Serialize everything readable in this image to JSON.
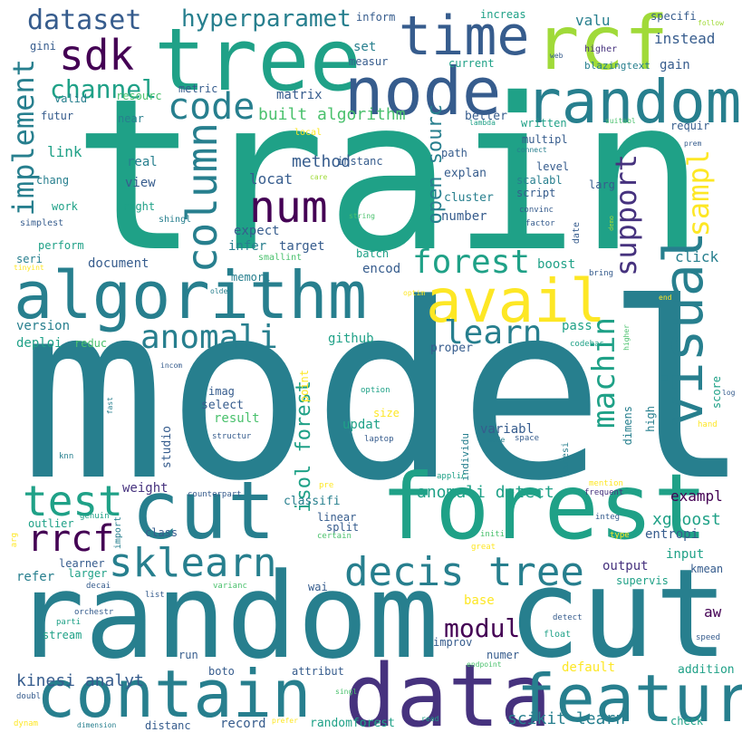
{
  "colors": {
    "background": "#ffffff",
    "palette": [
      "#440154",
      "#46327e",
      "#365c8d",
      "#277f8e",
      "#1fa187",
      "#4ac16d",
      "#a0da39",
      "#fde725"
    ]
  },
  "words": [
    {
      "text": "model",
      "color": "#277f8e"
    },
    {
      "text": "train",
      "color": "#1fa187"
    },
    {
      "text": "random",
      "color": "#277f8e"
    },
    {
      "text": "cut",
      "color": "#277f8e"
    },
    {
      "text": "forest",
      "color": "#1fa187"
    },
    {
      "text": "cut",
      "color": "#277f8e"
    },
    {
      "text": "algorithm",
      "color": "#277f8e"
    },
    {
      "text": "contain",
      "color": "#277f8e"
    },
    {
      "text": "data",
      "color": "#46327e"
    },
    {
      "text": "featur",
      "color": "#277f8e"
    },
    {
      "text": "tree",
      "color": "#1fa187"
    },
    {
      "text": "node",
      "color": "#365c8d"
    },
    {
      "text": "random",
      "color": "#277f8e"
    },
    {
      "text": "time",
      "color": "#365c8d"
    },
    {
      "text": "rcf",
      "color": "#a0da39"
    },
    {
      "text": "avail",
      "color": "#fde725"
    },
    {
      "text": "visual",
      "color": "#277f8e"
    },
    {
      "text": "sklearn",
      "color": "#277f8e"
    },
    {
      "text": "decis tree",
      "color": "#277f8e"
    },
    {
      "text": "test",
      "color": "#1fa187"
    },
    {
      "text": "rrcf",
      "color": "#440154"
    },
    {
      "text": "num",
      "color": "#440154"
    },
    {
      "text": "column",
      "color": "#277f8e"
    },
    {
      "text": "sdk",
      "color": "#440154"
    },
    {
      "text": "code",
      "color": "#277f8e"
    },
    {
      "text": "dataset",
      "color": "#365c8d"
    },
    {
      "text": "anomali",
      "color": "#277f8e"
    },
    {
      "text": "forest",
      "color": "#1fa187"
    },
    {
      "text": "learn",
      "color": "#277f8e"
    },
    {
      "text": "machin",
      "color": "#1fa187"
    },
    {
      "text": "support",
      "color": "#46327e"
    },
    {
      "text": "sampl",
      "color": "#fde725"
    },
    {
      "text": "implement",
      "color": "#277f8e"
    },
    {
      "text": "channel",
      "color": "#1fa187"
    },
    {
      "text": "hyperparamet",
      "color": "#277f8e"
    },
    {
      "text": "modul",
      "color": "#440154"
    },
    {
      "text": "anomali detect",
      "color": "#1fa187"
    },
    {
      "text": "scikit learn",
      "color": "#277f8e"
    },
    {
      "text": "kinesi analyt",
      "color": "#365c8d"
    },
    {
      "text": "xgboost",
      "color": "#1fa187"
    },
    {
      "text": "open sourc",
      "color": "#277f8e"
    },
    {
      "text": "isol forest",
      "color": "#1fa187"
    },
    {
      "text": "built algorithm",
      "color": "#4ac16d"
    },
    {
      "text": "method",
      "color": "#365c8d"
    },
    {
      "text": "valu",
      "color": "#277f8e"
    },
    {
      "text": "instead",
      "color": "#365c8d"
    },
    {
      "text": "gain",
      "color": "#365c8d"
    },
    {
      "text": "inform",
      "color": "#365c8d"
    },
    {
      "text": "increas",
      "color": "#1fa187"
    },
    {
      "text": "specifi",
      "color": "#365c8d"
    },
    {
      "text": "follow",
      "color": "#a0da39"
    },
    {
      "text": "higher",
      "color": "#46327e"
    },
    {
      "text": "web",
      "color": "#365c8d"
    },
    {
      "text": "blazingtext",
      "color": "#277f8e"
    },
    {
      "text": "matrix",
      "color": "#365c8d"
    },
    {
      "text": "set",
      "color": "#277f8e"
    },
    {
      "text": "measur",
      "color": "#365c8d"
    },
    {
      "text": "current",
      "color": "#1fa187"
    },
    {
      "text": "metric",
      "color": "#365c8d"
    },
    {
      "text": "resourc",
      "color": "#4ac16d"
    },
    {
      "text": "valid",
      "color": "#277f8e"
    },
    {
      "text": "gini",
      "color": "#365c8d"
    },
    {
      "text": "futur",
      "color": "#365c8d"
    },
    {
      "text": "near",
      "color": "#277f8e"
    },
    {
      "text": "link",
      "color": "#1fa187"
    },
    {
      "text": "chang",
      "color": "#277f8e"
    },
    {
      "text": "work",
      "color": "#1fa187"
    },
    {
      "text": "simplest",
      "color": "#365c8d"
    },
    {
      "text": "perform",
      "color": "#1fa187"
    },
    {
      "text": "seri",
      "color": "#277f8e"
    },
    {
      "text": "tinyint",
      "color": "#fde725"
    },
    {
      "text": "real",
      "color": "#277f8e"
    },
    {
      "text": "view",
      "color": "#365c8d"
    },
    {
      "text": "right",
      "color": "#1fa187"
    },
    {
      "text": "shingl",
      "color": "#277f8e"
    },
    {
      "text": "smallint",
      "color": "#4ac16d"
    },
    {
      "text": "local",
      "color": "#fde725"
    },
    {
      "text": "care",
      "color": "#a0da39"
    },
    {
      "text": "instanc",
      "color": "#365c8d"
    },
    {
      "text": "locat",
      "color": "#365c8d"
    },
    {
      "text": "expect",
      "color": "#365c8d"
    },
    {
      "text": "infer",
      "color": "#277f8e"
    },
    {
      "text": "target",
      "color": "#365c8d"
    },
    {
      "text": "string",
      "color": "#4ac16d"
    },
    {
      "text": "batch",
      "color": "#1fa187"
    },
    {
      "text": "document",
      "color": "#365c8d"
    },
    {
      "text": "memori",
      "color": "#277f8e"
    },
    {
      "text": "encod",
      "color": "#365c8d"
    },
    {
      "text": "version",
      "color": "#277f8e"
    },
    {
      "text": "deploi",
      "color": "#1fa187"
    },
    {
      "text": "reduc",
      "color": "#4ac16d"
    },
    {
      "text": "github",
      "color": "#1fa187"
    },
    {
      "text": "proper",
      "color": "#365c8d"
    },
    {
      "text": "older",
      "color": "#277f8e"
    },
    {
      "text": "optim",
      "color": "#fde725"
    },
    {
      "text": "better",
      "color": "#365c8d"
    },
    {
      "text": "lambda",
      "color": "#1fa187"
    },
    {
      "text": "written",
      "color": "#1fa187"
    },
    {
      "text": "suitabl",
      "color": "#4ac16d"
    },
    {
      "text": "requir",
      "color": "#365c8d"
    },
    {
      "text": "prem",
      "color": "#365c8d"
    },
    {
      "text": "multipl",
      "color": "#365c8d"
    },
    {
      "text": "connect",
      "color": "#277f8e"
    },
    {
      "text": "path",
      "color": "#365c8d"
    },
    {
      "text": "explan",
      "color": "#365c8d"
    },
    {
      "text": "level",
      "color": "#365c8d"
    },
    {
      "text": "scalabl",
      "color": "#277f8e"
    },
    {
      "text": "script",
      "color": "#365c8d"
    },
    {
      "text": "larg",
      "color": "#365c8d"
    },
    {
      "text": "cluster",
      "color": "#277f8e"
    },
    {
      "text": "convinc",
      "color": "#365c8d"
    },
    {
      "text": "number",
      "color": "#365c8d"
    },
    {
      "text": "factor",
      "color": "#365c8d"
    },
    {
      "text": "date",
      "color": "#365c8d"
    },
    {
      "text": "demo",
      "color": "#a0da39"
    },
    {
      "text": "click",
      "color": "#277f8e"
    },
    {
      "text": "boost",
      "color": "#1fa187"
    },
    {
      "text": "bring",
      "color": "#365c8d"
    },
    {
      "text": "end",
      "color": "#fde725"
    },
    {
      "text": "pass",
      "color": "#1fa187"
    },
    {
      "text": "codebas",
      "color": "#1fa187"
    },
    {
      "text": "higher",
      "color": "#4ac16d"
    },
    {
      "text": "score",
      "color": "#1fa187"
    },
    {
      "text": "log",
      "color": "#365c8d"
    },
    {
      "text": "hand",
      "color": "#fde725"
    },
    {
      "text": "high",
      "color": "#277f8e"
    },
    {
      "text": "dimens",
      "color": "#277f8e"
    },
    {
      "text": "kinesi",
      "color": "#277f8e"
    },
    {
      "text": "individu",
      "color": "#277f8e"
    },
    {
      "text": "space",
      "color": "#365c8d"
    },
    {
      "text": "mode",
      "color": "#277f8e"
    },
    {
      "text": "laptop",
      "color": "#365c8d"
    },
    {
      "text": "size",
      "color": "#fde725"
    },
    {
      "text": "option",
      "color": "#1fa187"
    },
    {
      "text": "imag",
      "color": "#365c8d"
    },
    {
      "text": "select",
      "color": "#365c8d"
    },
    {
      "text": "result",
      "color": "#4ac16d"
    },
    {
      "text": "updat",
      "color": "#1fa187"
    },
    {
      "text": "variabl",
      "color": "#365c8d"
    },
    {
      "text": "structur",
      "color": "#365c8d"
    },
    {
      "text": "studio",
      "color": "#365c8d"
    },
    {
      "text": "point",
      "color": "#fde725"
    },
    {
      "text": "incom",
      "color": "#365c8d"
    },
    {
      "text": "fast",
      "color": "#277f8e"
    },
    {
      "text": "knn",
      "color": "#277f8e"
    },
    {
      "text": "weight",
      "color": "#46327e"
    },
    {
      "text": "counterpart",
      "color": "#365c8d"
    },
    {
      "text": "classifi",
      "color": "#277f8e"
    },
    {
      "text": "linear",
      "color": "#365c8d"
    },
    {
      "text": "split",
      "color": "#365c8d"
    },
    {
      "text": "certain",
      "color": "#4ac16d"
    },
    {
      "text": "pre",
      "color": "#fde725"
    },
    {
      "text": "applic",
      "color": "#1fa187"
    },
    {
      "text": "mention",
      "color": "#fde725"
    },
    {
      "text": "frequent",
      "color": "#46327e"
    },
    {
      "text": "exampl",
      "color": "#440154"
    },
    {
      "text": "entropi",
      "color": "#365c8d"
    },
    {
      "text": "input",
      "color": "#1fa187"
    },
    {
      "text": "kmean",
      "color": "#365c8d"
    },
    {
      "text": "output",
      "color": "#46327e"
    },
    {
      "text": "supervis",
      "color": "#1fa187"
    },
    {
      "text": "integ",
      "color": "#365c8d"
    },
    {
      "text": "type",
      "color": "#fde725"
    },
    {
      "text": "initi",
      "color": "#4ac16d"
    },
    {
      "text": "great",
      "color": "#fde725"
    },
    {
      "text": "outlier",
      "color": "#1fa187"
    },
    {
      "text": "genuin",
      "color": "#1fa187"
    },
    {
      "text": "arg",
      "color": "#fde725"
    },
    {
      "text": "import",
      "color": "#277f8e"
    },
    {
      "text": "class",
      "color": "#365c8d"
    },
    {
      "text": "refer",
      "color": "#277f8e"
    },
    {
      "text": "learner",
      "color": "#365c8d"
    },
    {
      "text": "larger",
      "color": "#1fa187"
    },
    {
      "text": "decai",
      "color": "#365c8d"
    },
    {
      "text": "list",
      "color": "#365c8d"
    },
    {
      "text": "varianc",
      "color": "#4ac16d"
    },
    {
      "text": "wai",
      "color": "#365c8d"
    },
    {
      "text": "base",
      "color": "#fde725"
    },
    {
      "text": "aw",
      "color": "#440154"
    },
    {
      "text": "orchestr",
      "color": "#365c8d"
    },
    {
      "text": "parti",
      "color": "#1fa187"
    },
    {
      "text": "stream",
      "color": "#1fa187"
    },
    {
      "text": "improv",
      "color": "#365c8d"
    },
    {
      "text": "numer",
      "color": "#365c8d"
    },
    {
      "text": "detect",
      "color": "#365c8d"
    },
    {
      "text": "float",
      "color": "#1fa187"
    },
    {
      "text": "speed",
      "color": "#365c8d"
    },
    {
      "text": "run",
      "color": "#365c8d"
    },
    {
      "text": "default",
      "color": "#fde725"
    },
    {
      "text": "addition",
      "color": "#1fa187"
    },
    {
      "text": "endpoint",
      "color": "#4ac16d"
    },
    {
      "text": "boto",
      "color": "#365c8d"
    },
    {
      "text": "attribut",
      "color": "#365c8d"
    },
    {
      "text": "doubl",
      "color": "#365c8d"
    },
    {
      "text": "singl",
      "color": "#4ac16d"
    },
    {
      "text": "distanc",
      "color": "#365c8d"
    },
    {
      "text": "record",
      "color": "#365c8d"
    },
    {
      "text": "randomforest",
      "color": "#1fa187"
    },
    {
      "text": "read",
      "color": "#1fa187"
    },
    {
      "text": "dynam",
      "color": "#fde725"
    },
    {
      "text": "dimension",
      "color": "#277f8e"
    },
    {
      "text": "prefer",
      "color": "#fde725"
    },
    {
      "text": "check",
      "color": "#1fa187"
    }
  ]
}
